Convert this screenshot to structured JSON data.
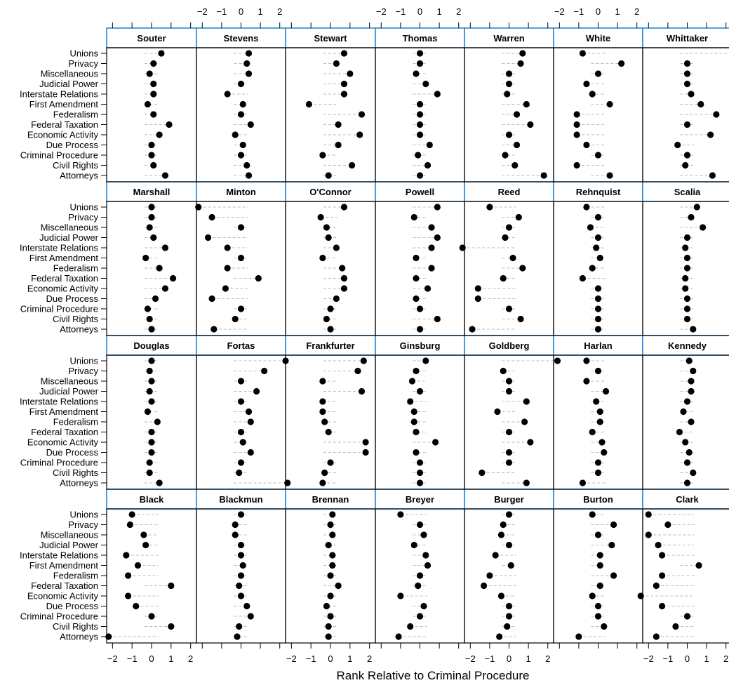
{
  "chart_data": {
    "type": "scatter",
    "subtype": "trellis-dotplot",
    "title": "",
    "xlabel": "Rank Relative to Criminal Procedure",
    "ylabel": "",
    "xlim": [
      -2.3,
      2.3
    ],
    "xticks": [
      "−2",
      "−1",
      "0",
      "1",
      "2"
    ],
    "xtick_values": [
      -2,
      -1,
      0,
      1,
      2
    ],
    "layout": {
      "columns": 7,
      "rows": 4
    },
    "colors": {
      "strip": "#1a83d6",
      "dots": "#000000",
      "guide": "#bbbbbb",
      "frame": "#000000"
    },
    "categories": [
      "Unions",
      "Privacy",
      "Miscellaneous",
      "Judicial Power",
      "Interstate Relations",
      "First Amendment",
      "Federalism",
      "Federal Taxation",
      "Economic Activity",
      "Due Process",
      "Criminal Procedure",
      "Civil Rights",
      "Attorneys"
    ],
    "panels": [
      {
        "name": "Black",
        "values": [
          -1.0,
          -1.1,
          -0.4,
          -0.3,
          -1.3,
          -0.7,
          -1.2,
          1.0,
          -1.2,
          -0.8,
          0.0,
          1.0,
          -2.2
        ]
      },
      {
        "name": "Blackmun",
        "values": [
          0.0,
          -0.3,
          -0.3,
          0.0,
          0.0,
          0.1,
          0.0,
          -0.1,
          0.0,
          0.3,
          0.5,
          -0.1,
          -0.2
        ]
      },
      {
        "name": "Brennan",
        "values": [
          0.1,
          0.0,
          0.1,
          -0.1,
          0.1,
          0.1,
          0.0,
          0.4,
          0.0,
          -0.2,
          0.0,
          -0.1,
          -0.1
        ]
      },
      {
        "name": "Breyer",
        "values": [
          -1.0,
          0.0,
          0.2,
          -0.3,
          0.3,
          0.4,
          0.0,
          -0.1,
          -1.0,
          0.2,
          0.0,
          -0.5,
          -1.1
        ]
      },
      {
        "name": "Burger",
        "values": [
          0.0,
          -0.3,
          -0.4,
          0.0,
          -0.7,
          0.1,
          -1.0,
          -1.3,
          -0.4,
          0.0,
          0.0,
          -0.1,
          -0.5
        ]
      },
      {
        "name": "Burton",
        "values": [
          -0.3,
          0.8,
          0.0,
          0.7,
          0.1,
          0.1,
          0.8,
          0.1,
          -0.3,
          0.0,
          0.0,
          0.3,
          -1.0
        ]
      },
      {
        "name": "Clark",
        "values": [
          -2.0,
          -1.0,
          -2.0,
          -1.5,
          -1.3,
          0.6,
          -1.3,
          -1.6,
          -2.4,
          -1.3,
          0.0,
          -0.6,
          -1.6
        ]
      },
      {
        "name": "Douglas",
        "values": [
          0.0,
          -0.1,
          0.0,
          -0.1,
          0.0,
          -0.2,
          0.3,
          0.0,
          0.0,
          0.0,
          -0.1,
          -0.1,
          0.4
        ]
      },
      {
        "name": "Fortas",
        "values": [
          2.3,
          1.2,
          0.0,
          0.8,
          0.0,
          0.4,
          0.5,
          0.0,
          0.1,
          0.5,
          0.0,
          -0.1,
          2.4
        ]
      },
      {
        "name": "Frankfurter",
        "values": [
          1.7,
          1.4,
          -0.4,
          1.6,
          -0.4,
          -0.4,
          -0.3,
          -0.1,
          1.8,
          1.8,
          0.0,
          -0.3,
          -0.4
        ]
      },
      {
        "name": "Ginsburg",
        "values": [
          0.3,
          -0.2,
          -0.4,
          0.0,
          -0.5,
          -0.3,
          -0.3,
          -0.2,
          0.8,
          -0.2,
          0.0,
          0.0,
          0.0
        ]
      },
      {
        "name": "Goldberg",
        "values": [
          2.5,
          -0.3,
          0.0,
          0.0,
          0.9,
          -0.6,
          0.8,
          0.0,
          1.1,
          0.0,
          0.0,
          -1.4,
          0.9
        ]
      },
      {
        "name": "Harlan",
        "values": [
          -0.6,
          0.0,
          -0.6,
          0.4,
          -0.1,
          0.1,
          0.1,
          -0.3,
          0.2,
          0.3,
          0.0,
          0.0,
          -0.8
        ]
      },
      {
        "name": "Kennedy",
        "values": [
          0.1,
          0.3,
          0.2,
          0.2,
          0.0,
          -0.2,
          0.2,
          -0.4,
          -0.1,
          0.1,
          0.0,
          0.3,
          0.0
        ]
      },
      {
        "name": "Marshall",
        "values": [
          0.0,
          0.0,
          -0.1,
          0.1,
          0.7,
          -0.3,
          0.4,
          1.1,
          0.7,
          0.2,
          -0.2,
          -0.1,
          0.0
        ]
      },
      {
        "name": "Minton",
        "values": [
          -2.2,
          -1.5,
          0.0,
          -1.7,
          -0.7,
          0.0,
          -0.7,
          0.9,
          -0.8,
          -1.5,
          0.0,
          -0.3,
          -1.4
        ]
      },
      {
        "name": "O'Connor",
        "values": [
          0.7,
          -0.5,
          -0.2,
          -0.1,
          0.3,
          -0.4,
          0.6,
          0.7,
          0.7,
          0.3,
          0.0,
          -0.2,
          0.0
        ]
      },
      {
        "name": "Powell",
        "values": [
          0.9,
          -0.3,
          0.6,
          0.9,
          0.6,
          -0.2,
          0.6,
          -0.2,
          0.4,
          -0.2,
          0.0,
          0.9,
          0.0
        ]
      },
      {
        "name": "Reed",
        "values": [
          -1.0,
          0.5,
          0.0,
          -0.2,
          -2.4,
          0.2,
          0.7,
          -0.3,
          -1.6,
          -1.6,
          0.0,
          0.6,
          -1.9
        ]
      },
      {
        "name": "Rehnquist",
        "values": [
          -0.6,
          0.0,
          -0.4,
          0.0,
          -0.1,
          0.1,
          -0.3,
          -0.8,
          0.0,
          0.0,
          0.0,
          0.0,
          0.0
        ]
      },
      {
        "name": "Scalia",
        "values": [
          0.5,
          0.2,
          0.8,
          0.0,
          -0.1,
          0.0,
          0.0,
          -0.1,
          -0.1,
          0.0,
          0.0,
          0.0,
          0.3
        ]
      },
      {
        "name": "Souter",
        "values": [
          0.5,
          0.1,
          -0.1,
          0.1,
          0.1,
          -0.2,
          0.1,
          0.9,
          0.4,
          0.0,
          0.0,
          0.1,
          0.7
        ]
      },
      {
        "name": "Stevens",
        "values": [
          0.4,
          0.3,
          0.4,
          0.0,
          -0.7,
          0.1,
          0.0,
          0.5,
          -0.3,
          0.1,
          0.0,
          0.3,
          0.4
        ]
      },
      {
        "name": "Stewart",
        "values": [
          0.7,
          0.3,
          1.0,
          0.7,
          0.7,
          -1.1,
          1.6,
          0.4,
          1.5,
          0.4,
          -0.4,
          1.1,
          -0.1
        ]
      },
      {
        "name": "Thomas",
        "values": [
          0.0,
          0.0,
          -0.2,
          0.3,
          0.9,
          0.0,
          0.0,
          0.0,
          0.0,
          0.5,
          -0.1,
          0.4,
          0.0
        ]
      },
      {
        "name": "Warren",
        "values": [
          0.7,
          0.6,
          0.0,
          0.0,
          -0.1,
          0.9,
          0.4,
          1.1,
          0.0,
          0.4,
          -0.2,
          0.3,
          1.8
        ]
      },
      {
        "name": "White",
        "values": [
          -0.8,
          1.2,
          0.0,
          -0.6,
          -0.3,
          0.6,
          -1.1,
          -1.1,
          -1.1,
          -0.6,
          0.0,
          -1.1,
          0.6
        ]
      },
      {
        "name": "Whittaker",
        "values": [
          2.5,
          0.0,
          0.0,
          0.0,
          0.2,
          0.7,
          1.5,
          0.0,
          1.2,
          -0.5,
          0.0,
          -0.1,
          1.3
        ]
      }
    ]
  }
}
